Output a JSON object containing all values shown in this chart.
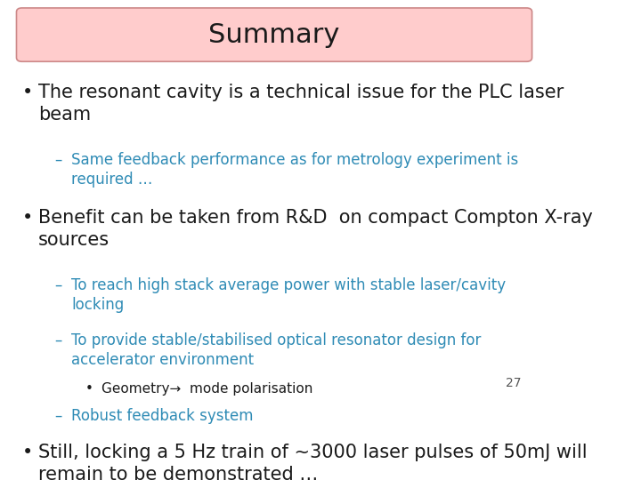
{
  "title": "Summary",
  "title_bg_color_top": "#ffb3b3",
  "title_bg_color": "#ffcccc",
  "title_border_color": "#cc6666",
  "slide_bg": "#ffffff",
  "page_number": "27",
  "bullet_color": "#1a1a1a",
  "sub_bullet_color": "#2e8bb5",
  "sub_sub_bullet_color": "#1a1a1a",
  "bullets": [
    {
      "level": 0,
      "text": "The resonant cavity is a technical issue for the PLC laser\nbeam",
      "color": "#1a1a1a",
      "size": 15
    },
    {
      "level": 1,
      "text": "Same feedback performance as for metrology experiment is\nrequired …",
      "color": "#2e8bb5",
      "size": 12
    },
    {
      "level": 0,
      "text": "Benefit can be taken from R&D  on compact Compton X-ray\nsources",
      "color": "#1a1a1a",
      "size": 15
    },
    {
      "level": 1,
      "text": "To reach high stack average power with stable laser/cavity\nlocking",
      "color": "#2e8bb5",
      "size": 12
    },
    {
      "level": 1,
      "text": "To provide stable/stabilised optical resonator design for\naccelerator environment",
      "color": "#2e8bb5",
      "size": 12
    },
    {
      "level": 2,
      "text": "Geometry→  mode polarisation",
      "color": "#1a1a1a",
      "size": 11
    },
    {
      "level": 1,
      "text": "Robust feedback system",
      "color": "#2e8bb5",
      "size": 12
    },
    {
      "level": 0,
      "text": "Still, locking a 5 Hz train of ~3000 laser pulses of 50mJ will\nremain to be demonstrated …",
      "color": "#1a1a1a",
      "size": 15
    }
  ]
}
